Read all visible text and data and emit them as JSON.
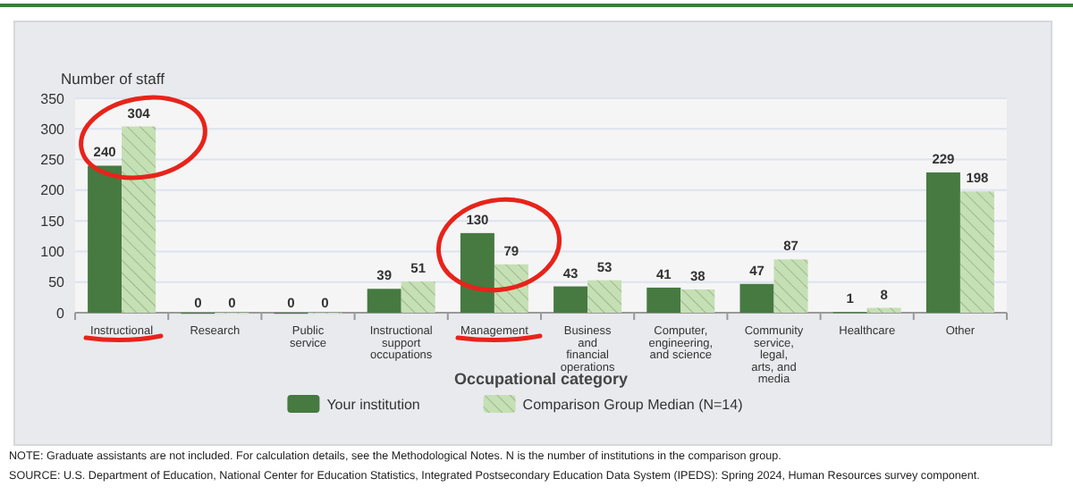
{
  "chart_data": {
    "type": "bar",
    "ylabel": "Number of staff",
    "xlabel": "Occupational category",
    "categories": [
      "Instructional",
      "Research",
      "Public service",
      "Instructional support occupations",
      "Management",
      "Business and financial operations",
      "Computer, engineering, and science",
      "Community service, legal, arts, and media",
      "Healthcare",
      "Other"
    ],
    "series": [
      {
        "name": "Your institution",
        "color": "#467a41",
        "values": [
          240,
          0,
          0,
          39,
          130,
          43,
          41,
          47,
          1,
          229
        ]
      },
      {
        "name": "Comparison Group Median (N=14)",
        "color": "#c5e0b4",
        "values": [
          304,
          0,
          0,
          51,
          79,
          53,
          38,
          87,
          8,
          198
        ]
      }
    ],
    "ylim": [
      0,
      350
    ],
    "yticks": [
      0,
      50,
      100,
      150,
      200,
      250,
      300,
      350
    ],
    "grid": "y",
    "legend": "bottom",
    "data_labels": true,
    "annotations": [
      "NOTE: Graduate assistants are not included. For calculation details, see the Methodological Notes. N is the number of institutions in the comparison group.",
      "SOURCE: U.S. Department of Education, National Center for Education Statistics, Integrated Postsecondary Education Data System (IPEDS): Spring 2024, Human Resources survey component."
    ]
  }
}
